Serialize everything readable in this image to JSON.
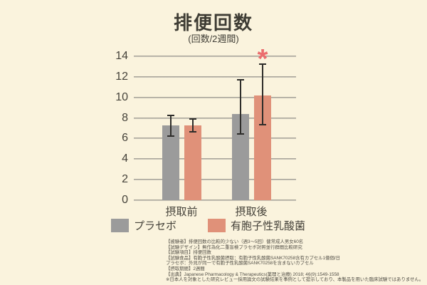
{
  "page": {
    "background": "#faf3dd"
  },
  "chart_data": {
    "type": "bar",
    "title": "排便回数",
    "subtitle": "(回数/2週間)",
    "categories": [
      "摂取前",
      "摂取後"
    ],
    "series": [
      {
        "name": "プラセボ",
        "color": "#9b9b9b",
        "values": [
          7.3,
          8.4
        ],
        "error_low": [
          6.2,
          6.4
        ],
        "error_high": [
          8.3,
          11.8
        ]
      },
      {
        "name": "有胞子性乳酸菌",
        "color": "#e09179",
        "values": [
          7.3,
          10.2
        ],
        "error_low": [
          6.6,
          7.3
        ],
        "error_high": [
          8.0,
          13.3
        ]
      }
    ],
    "ylim": [
      0,
      14
    ],
    "ytick_step": 2,
    "grid": true,
    "legend_position": "bottom",
    "annotation": {
      "text": "*",
      "color": "#eb6d6e",
      "category": "摂取後",
      "series": "有胞子性乳酸菌",
      "meaning": "statistically-significant"
    }
  },
  "footnotes": {
    "lines": [
      "【被験者】排便回数の比較的少ない（週3〜5回）健常成人男女60名",
      "【試験デザイン】無作為化二重盲検プラセボ対照並行群間比較研究",
      "【試験項目】排便回数",
      "【試験食品】有胞子性乳酸菌摂取：有胞子性乳酸菌SANK70258含有カプセル1億個/日",
      "プラセボ：外見が同一で有胞子性乳酸菌SANK70258を含まないカプセル",
      "【摂取期間】2週間",
      "【出典】Japanese Pharmacology & Therapeutics(薬理と治療) 2018; 46(9):1549-1558",
      "※日本人を対象とした研究レビュー採用論文の試験結果を事例として提示しており、本製品を用いた臨床試験ではありません。"
    ]
  }
}
